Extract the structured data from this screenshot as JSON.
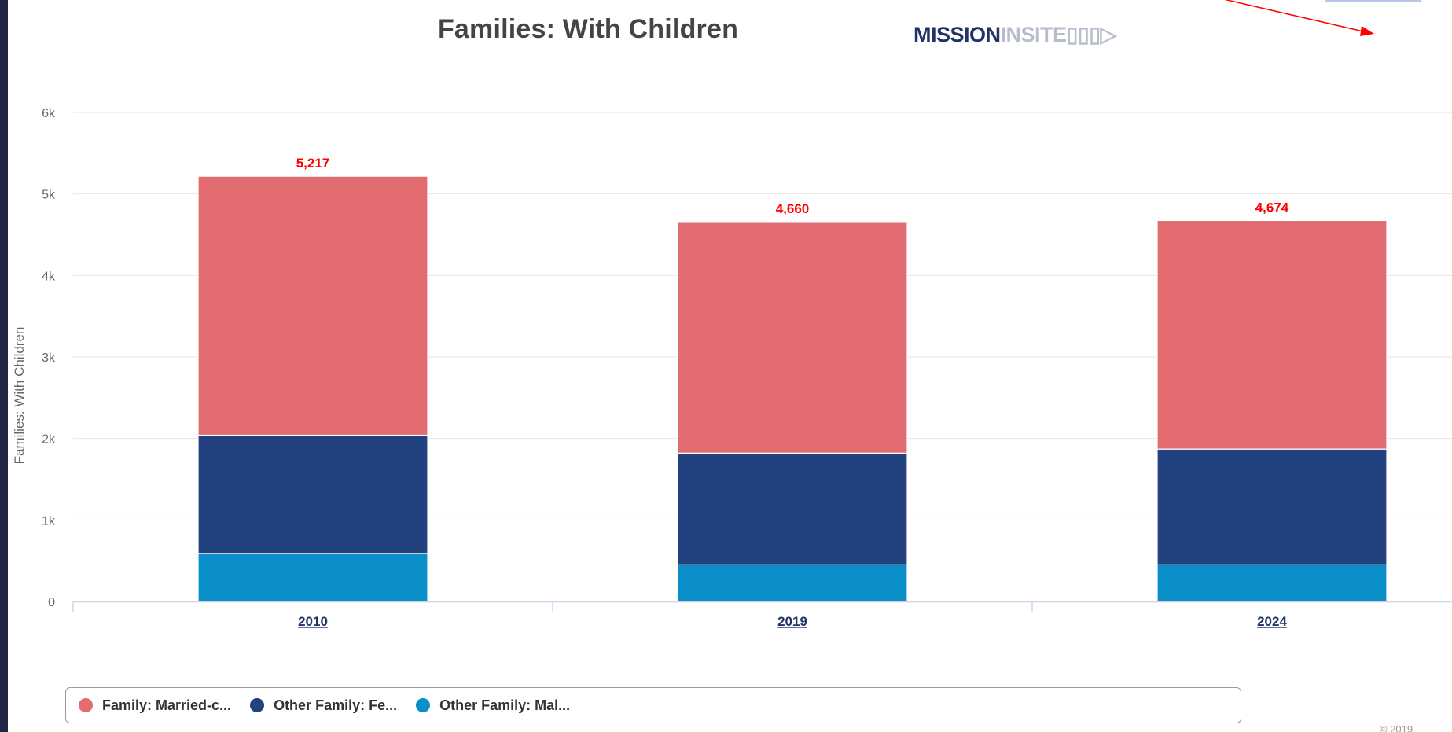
{
  "logo": {
    "part1": "MISSION",
    "part2": "INSITE"
  },
  "credits": "© 2019 ·",
  "chart_data": {
    "type": "bar",
    "stacked": true,
    "title": "Families: With Children",
    "xlabel": "",
    "ylabel": "Families: With Children",
    "categories": [
      "2010",
      "2019",
      "2024"
    ],
    "ylim": [
      0,
      6000
    ],
    "yticks": [
      0,
      1000,
      2000,
      3000,
      4000,
      5000,
      6000
    ],
    "ytick_labels": [
      "0",
      "1k",
      "2k",
      "3k",
      "4k",
      "5k",
      "6k"
    ],
    "series": [
      {
        "name": "Other Family: Mal...",
        "color": "#0b8fc9",
        "values": [
          590,
          450,
          450
        ]
      },
      {
        "name": "Other Family: Fe...",
        "color": "#21427f",
        "values": [
          1450,
          1370,
          1420
        ]
      },
      {
        "name": "Family: Married-c...",
        "color": "#e26c70",
        "values": [
          3177,
          2840,
          2804
        ]
      }
    ],
    "totals": [
      5217,
      4660,
      4674
    ],
    "total_labels": [
      "5,217",
      "4,660",
      "4,674"
    ],
    "total_label_color": "#ff0000",
    "grid": true,
    "legend_position": "bottom-left",
    "legend_order": [
      "Family: Married-c...",
      "Other Family: Fe...",
      "Other Family: Mal..."
    ]
  }
}
